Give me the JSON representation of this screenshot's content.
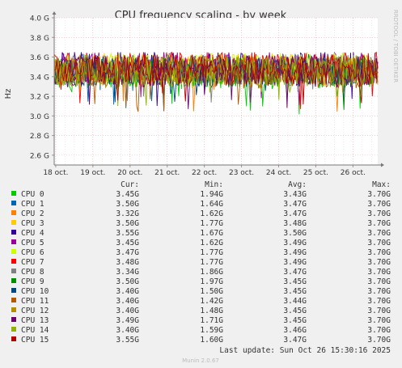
{
  "chart_data": {
    "type": "line",
    "title": "CPU frequency scaling - by week",
    "ylabel": "Hz",
    "side_label": "RRDTOOL / TOBI OETIKER",
    "ylim": [
      2.5,
      4.0
    ],
    "yticks": [
      {
        "value": 2.6,
        "label": "2.6 G"
      },
      {
        "value": 2.8,
        "label": "2.8 G"
      },
      {
        "value": 3.0,
        "label": "3.0 G"
      },
      {
        "value": 3.2,
        "label": "3.2 G"
      },
      {
        "value": 3.4,
        "label": "3.4 G"
      },
      {
        "value": 3.6,
        "label": "3.6 G"
      },
      {
        "value": 3.8,
        "label": "3.8 G"
      },
      {
        "value": 4.0,
        "label": "4.0 G"
      }
    ],
    "xlim": [
      "2025-10-17T23:00",
      "2025-10-26T16:00"
    ],
    "xticks": [
      {
        "value": "2025-10-18",
        "label": "18 oct."
      },
      {
        "value": "2025-10-19",
        "label": "19 oct."
      },
      {
        "value": "2025-10-20",
        "label": "20 oct."
      },
      {
        "value": "2025-10-21",
        "label": "21 oct."
      },
      {
        "value": "2025-10-22",
        "label": "22 oct."
      },
      {
        "value": "2025-10-23",
        "label": "23 oct."
      },
      {
        "value": "2025-10-24",
        "label": "24 oct."
      },
      {
        "value": "2025-10-25",
        "label": "25 oct."
      },
      {
        "value": "2025-10-26",
        "label": "26 oct."
      }
    ],
    "grid": true,
    "legend_headers": {
      "cur": "Cur:",
      "min": "Min:",
      "avg": "Avg:",
      "max": "Max:"
    },
    "series": [
      {
        "name": "CPU 0",
        "color": "#00cc00",
        "cur": "3.45G",
        "min": "1.94G",
        "avg": "3.43G",
        "max": "3.70G"
      },
      {
        "name": "CPU 1",
        "color": "#0066b3",
        "cur": "3.50G",
        "min": "1.64G",
        "avg": "3.47G",
        "max": "3.70G"
      },
      {
        "name": "CPU 2",
        "color": "#ff8000",
        "cur": "3.32G",
        "min": "1.62G",
        "avg": "3.47G",
        "max": "3.70G"
      },
      {
        "name": "CPU 3",
        "color": "#ffcc00",
        "cur": "3.50G",
        "min": "1.77G",
        "avg": "3.48G",
        "max": "3.70G"
      },
      {
        "name": "CPU 4",
        "color": "#330099",
        "cur": "3.55G",
        "min": "1.67G",
        "avg": "3.50G",
        "max": "3.70G"
      },
      {
        "name": "CPU 5",
        "color": "#990099",
        "cur": "3.45G",
        "min": "1.62G",
        "avg": "3.49G",
        "max": "3.70G"
      },
      {
        "name": "CPU 6",
        "color": "#ccff00",
        "cur": "3.47G",
        "min": "1.77G",
        "avg": "3.49G",
        "max": "3.70G"
      },
      {
        "name": "CPU 7",
        "color": "#ff0000",
        "cur": "3.48G",
        "min": "1.77G",
        "avg": "3.49G",
        "max": "3.70G"
      },
      {
        "name": "CPU 8",
        "color": "#808080",
        "cur": "3.34G",
        "min": "1.86G",
        "avg": "3.47G",
        "max": "3.70G"
      },
      {
        "name": "CPU 9",
        "color": "#008f00",
        "cur": "3.50G",
        "min": "1.97G",
        "avg": "3.45G",
        "max": "3.70G"
      },
      {
        "name": "CPU 10",
        "color": "#00487d",
        "cur": "3.40G",
        "min": "1.50G",
        "avg": "3.45G",
        "max": "3.70G"
      },
      {
        "name": "CPU 11",
        "color": "#b35a00",
        "cur": "3.40G",
        "min": "1.42G",
        "avg": "3.44G",
        "max": "3.70G"
      },
      {
        "name": "CPU 12",
        "color": "#b38f00",
        "cur": "3.40G",
        "min": "1.48G",
        "avg": "3.45G",
        "max": "3.70G"
      },
      {
        "name": "CPU 13",
        "color": "#6b006b",
        "cur": "3.49G",
        "min": "1.71G",
        "avg": "3.45G",
        "max": "3.70G"
      },
      {
        "name": "CPU 14",
        "color": "#8fb300",
        "cur": "3.40G",
        "min": "1.59G",
        "avg": "3.46G",
        "max": "3.70G"
      },
      {
        "name": "CPU 15",
        "color": "#b30000",
        "cur": "3.55G",
        "min": "1.60G",
        "avg": "3.47G",
        "max": "3.70G"
      }
    ]
  },
  "footer": {
    "last_update": "Last update: Sun Oct 26 15:30:16 2025",
    "version": "Munin 2.0.67"
  }
}
